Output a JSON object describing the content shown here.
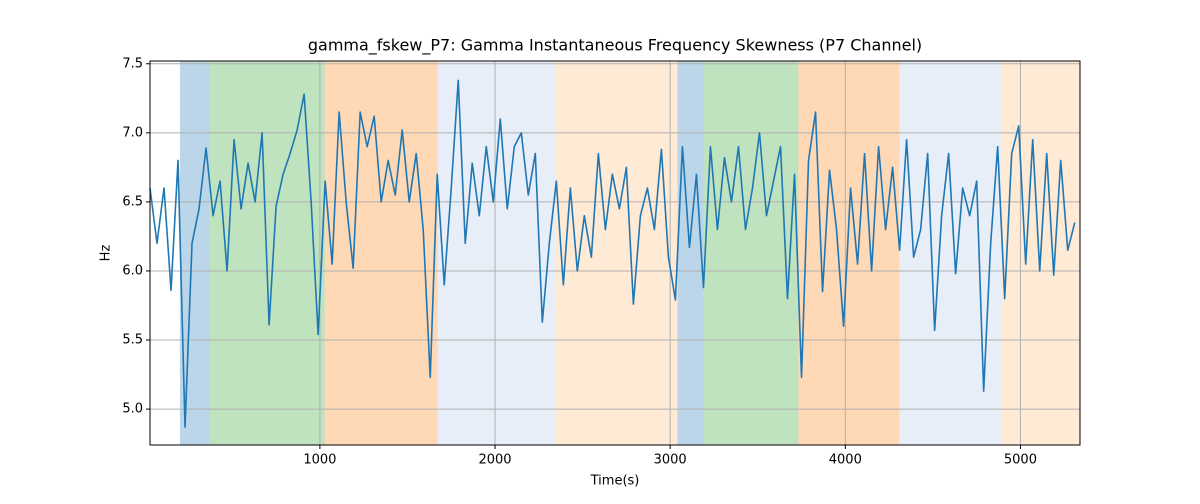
{
  "chart_data": {
    "type": "line",
    "title": "gamma_fskew_P7: Gamma Instantaneous Frequency Skewness (P7 Channel)",
    "xlabel": "Time(s)",
    "ylabel": "Hz",
    "xlim": [
      30,
      5340
    ],
    "ylim": [
      4.74,
      7.52
    ],
    "xticks": [
      1000,
      2000,
      3000,
      4000,
      5000
    ],
    "yticks": [
      {
        "value": 5,
        "label": "5.0"
      },
      5.5,
      {
        "value": 6,
        "label": "6.0"
      },
      6.5,
      {
        "value": 7,
        "label": "7.0"
      },
      7.5
    ],
    "grid": true,
    "spans": [
      {
        "start": 201,
        "end": 372,
        "color": "#1f77b4",
        "alpha": 0.3
      },
      {
        "start": 372,
        "end": 1028,
        "color": "#2ca02c",
        "alpha": 0.3
      },
      {
        "start": 1028,
        "end": 1673,
        "color": "#ff7f0e",
        "alpha": 0.3
      },
      {
        "start": 1673,
        "end": 2346,
        "color": "#aec7e8",
        "alpha": 0.3
      },
      {
        "start": 2346,
        "end": 3042,
        "color": "#ffbb78",
        "alpha": 0.3
      },
      {
        "start": 3042,
        "end": 3190,
        "color": "#1f77b4",
        "alpha": 0.3
      },
      {
        "start": 3190,
        "end": 3732,
        "color": "#2ca02c",
        "alpha": 0.3
      },
      {
        "start": 3732,
        "end": 4308,
        "color": "#ff7f0e",
        "alpha": 0.3
      },
      {
        "start": 4308,
        "end": 4890,
        "color": "#aec7e8",
        "alpha": 0.3
      },
      {
        "start": 4890,
        "end": 5340,
        "color": "#ffbb78",
        "alpha": 0.3
      }
    ],
    "series": [
      {
        "color": "#1f77b4",
        "x": [
          30,
          70,
          110,
          150,
          190,
          230,
          270,
          310,
          350,
          390,
          430,
          470,
          510,
          550,
          590,
          630,
          670,
          710,
          750,
          790,
          830,
          870,
          910,
          950,
          990,
          1030,
          1070,
          1110,
          1150,
          1190,
          1230,
          1270,
          1310,
          1350,
          1390,
          1430,
          1470,
          1510,
          1550,
          1590,
          1630,
          1670,
          1710,
          1750,
          1790,
          1830,
          1870,
          1910,
          1950,
          1990,
          2030,
          2070,
          2110,
          2150,
          2190,
          2230,
          2270,
          2310,
          2350,
          2390,
          2430,
          2470,
          2510,
          2550,
          2590,
          2630,
          2670,
          2710,
          2750,
          2790,
          2830,
          2870,
          2910,
          2950,
          2990,
          3030,
          3070,
          3110,
          3150,
          3190,
          3230,
          3270,
          3310,
          3350,
          3390,
          3430,
          3470,
          3510,
          3550,
          3590,
          3630,
          3670,
          3710,
          3750,
          3790,
          3830,
          3870,
          3910,
          3950,
          3990,
          4030,
          4070,
          4110,
          4150,
          4190,
          4230,
          4270,
          4310,
          4350,
          4390,
          4430,
          4470,
          4510,
          4550,
          4590,
          4630,
          4670,
          4710,
          4750,
          4790,
          4830,
          4870,
          4910,
          4950,
          4990,
          5030,
          5070,
          5110,
          5150,
          5190,
          5230,
          5270,
          5310
        ],
        "values": [
          6.6,
          6.2,
          6.6,
          5.86,
          6.8,
          4.87,
          6.2,
          6.45,
          6.89,
          6.4,
          6.65,
          6.0,
          6.95,
          6.45,
          6.78,
          6.5,
          7.0,
          5.61,
          6.47,
          6.7,
          6.85,
          7.02,
          7.28,
          6.5,
          5.54,
          6.65,
          6.05,
          7.15,
          6.5,
          6.02,
          7.15,
          6.9,
          7.12,
          6.5,
          6.8,
          6.55,
          7.02,
          6.5,
          6.85,
          6.3,
          5.23,
          6.7,
          5.9,
          6.6,
          7.38,
          6.2,
          6.78,
          6.4,
          6.9,
          6.5,
          7.1,
          6.45,
          6.9,
          7.0,
          6.55,
          6.85,
          5.63,
          6.2,
          6.65,
          5.9,
          6.6,
          6.0,
          6.4,
          6.1,
          6.85,
          6.3,
          6.7,
          6.45,
          6.75,
          5.76,
          6.4,
          6.6,
          6.3,
          6.88,
          6.1,
          5.79,
          6.9,
          6.17,
          6.7,
          5.88,
          6.9,
          6.3,
          6.82,
          6.5,
          6.9,
          6.3,
          6.6,
          7.0,
          6.4,
          6.65,
          6.9,
          5.8,
          6.7,
          5.23,
          6.8,
          7.15,
          5.85,
          6.73,
          6.3,
          5.6,
          6.6,
          6.05,
          6.85,
          6.0,
          6.9,
          6.3,
          6.75,
          6.15,
          6.95,
          6.1,
          6.3,
          6.85,
          5.57,
          6.4,
          6.85,
          5.98,
          6.6,
          6.4,
          6.65,
          5.13,
          6.2,
          6.9,
          5.8,
          6.85,
          7.05,
          6.05,
          6.95,
          6.0,
          6.85,
          5.97,
          6.8,
          6.15,
          6.35
        ]
      }
    ]
  }
}
